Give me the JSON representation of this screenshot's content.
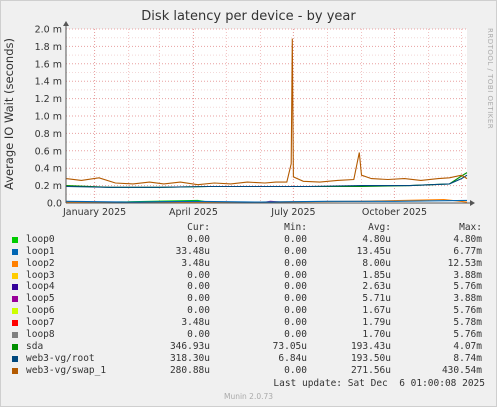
{
  "page": {
    "title": "Disk latency per device - by year",
    "watermark": "RRDTOOL / TOBI OETIKER",
    "last_update": "Last update: Sat Dec  6 01:00:08 2025",
    "footer": "Munin 2.0.73"
  },
  "legend_header": {
    "cur": "Cur:",
    "min": "Min:",
    "avg": "Avg:",
    "max": "Max:"
  },
  "legend": [
    {
      "name": "loop0",
      "color": "#00cc00",
      "cur": "0.00",
      "min": "0.00",
      "avg": "4.80u",
      "max": "4.80m"
    },
    {
      "name": "loop1",
      "color": "#0066b3",
      "cur": "33.48u",
      "min": "0.00",
      "avg": "13.45u",
      "max": "6.77m"
    },
    {
      "name": "loop2",
      "color": "#ff8000",
      "cur": "3.48u",
      "min": "0.00",
      "avg": "8.00u",
      "max": "12.53m"
    },
    {
      "name": "loop3",
      "color": "#ffcc00",
      "cur": "0.00",
      "min": "0.00",
      "avg": "1.85u",
      "max": "3.88m"
    },
    {
      "name": "loop4",
      "color": "#330099",
      "cur": "0.00",
      "min": "0.00",
      "avg": "2.63u",
      "max": "5.76m"
    },
    {
      "name": "loop5",
      "color": "#990099",
      "cur": "0.00",
      "min": "0.00",
      "avg": "5.71u",
      "max": "3.88m"
    },
    {
      "name": "loop6",
      "color": "#ccff00",
      "cur": "0.00",
      "min": "0.00",
      "avg": "1.67u",
      "max": "5.76m"
    },
    {
      "name": "loop7",
      "color": "#ff0000",
      "cur": "3.48u",
      "min": "0.00",
      "avg": "1.79u",
      "max": "5.78m"
    },
    {
      "name": "loop8",
      "color": "#808080",
      "cur": "0.00",
      "min": "0.00",
      "avg": "1.70u",
      "max": "5.76m"
    },
    {
      "name": "sda",
      "color": "#008f00",
      "cur": "346.93u",
      "min": "73.05u",
      "avg": "193.43u",
      "max": "4.07m"
    },
    {
      "name": "web3-vg/root",
      "color": "#00487d",
      "cur": "318.30u",
      "min": "6.84u",
      "avg": "193.50u",
      "max": "8.74m"
    },
    {
      "name": "web3-vg/swap_1",
      "color": "#b35a00",
      "cur": "280.88u",
      "min": "0.00",
      "avg": "271.56u",
      "max": "430.54m"
    }
  ],
  "chart_data": {
    "type": "line",
    "title": "Disk latency per device - by year",
    "ylabel": "Average IO Wait (seconds)",
    "xlabel": "",
    "x_range": [
      "2024-12-06",
      "2025-12-06"
    ],
    "ylim": [
      0,
      0.002
    ],
    "yticks": [
      {
        "value": 0,
        "label": "0.0"
      },
      {
        "value": 0.0002,
        "label": "0.2 m"
      },
      {
        "value": 0.0004,
        "label": "0.4 m"
      },
      {
        "value": 0.0006,
        "label": "0.6 m"
      },
      {
        "value": 0.0008,
        "label": "0.8 m"
      },
      {
        "value": 0.001,
        "label": "1.0 m"
      },
      {
        "value": 0.0012,
        "label": "1.2 m"
      },
      {
        "value": 0.0014,
        "label": "1.4 m"
      },
      {
        "value": 0.0016,
        "label": "1.6 m"
      },
      {
        "value": 0.0018,
        "label": "1.8 m"
      },
      {
        "value": 0.002,
        "label": "2.0 m"
      }
    ],
    "xticks": [
      {
        "date": "2025-01-01",
        "label": "January 2025"
      },
      {
        "date": "2025-04-01",
        "label": "April 2025"
      },
      {
        "date": "2025-07-01",
        "label": "July 2025"
      },
      {
        "date": "2025-10-01",
        "label": "October 2025"
      }
    ],
    "grid": true,
    "series": [
      {
        "name": "web3-vg/swap_1",
        "color": "#b35a00",
        "x": [
          "2024-12-06",
          "2024-12-20",
          "2025-01-05",
          "2025-01-20",
          "2025-02-05",
          "2025-02-20",
          "2025-03-05",
          "2025-03-20",
          "2025-04-05",
          "2025-04-20",
          "2025-05-05",
          "2025-05-20",
          "2025-06-05",
          "2025-06-15",
          "2025-06-25",
          "2025-06-29",
          "2025-06-30",
          "2025-07-01",
          "2025-07-10",
          "2025-07-25",
          "2025-08-10",
          "2025-08-25",
          "2025-08-30",
          "2025-09-01",
          "2025-09-10",
          "2025-09-25",
          "2025-10-10",
          "2025-10-25",
          "2025-11-10",
          "2025-11-20",
          "2025-12-01",
          "2025-12-06"
        ],
        "y": [
          0.00028,
          0.00026,
          0.00029,
          0.00023,
          0.00022,
          0.00024,
          0.00022,
          0.00024,
          0.00021,
          0.00023,
          0.00022,
          0.00024,
          0.00023,
          0.00024,
          0.00024,
          0.00045,
          0.00189,
          0.0003,
          0.00025,
          0.00024,
          0.00026,
          0.00027,
          0.00058,
          0.00032,
          0.00028,
          0.00027,
          0.00028,
          0.00026,
          0.00028,
          0.00029,
          0.00032,
          0.00028
        ]
      },
      {
        "name": "web3-vg/root",
        "color": "#00487d",
        "x": [
          "2024-12-06",
          "2025-01-15",
          "2025-03-01",
          "2025-04-15",
          "2025-06-01",
          "2025-07-15",
          "2025-09-01",
          "2025-10-15",
          "2025-11-20",
          "2025-12-01",
          "2025-12-06"
        ],
        "y": [
          0.00019,
          0.00018,
          0.00018,
          0.00019,
          0.00019,
          0.00019,
          0.0002,
          0.0002,
          0.00022,
          0.00028,
          0.00032
        ]
      },
      {
        "name": "sda",
        "color": "#008f00",
        "x": [
          "2024-12-06",
          "2025-01-15",
          "2025-03-01",
          "2025-04-15",
          "2025-06-01",
          "2025-07-15",
          "2025-09-01",
          "2025-10-15",
          "2025-11-20",
          "2025-12-01",
          "2025-12-06"
        ],
        "y": [
          0.0002,
          0.00018,
          0.00018,
          0.00019,
          0.00019,
          0.00019,
          0.00019,
          0.0002,
          0.00022,
          0.00031,
          0.00035
        ]
      },
      {
        "name": "loop1",
        "color": "#0066b3",
        "x": [
          "2024-12-06",
          "2025-02-01",
          "2025-04-01",
          "2025-06-01",
          "2025-08-01",
          "2025-10-01",
          "2025-12-06"
        ],
        "y": [
          2e-05,
          1e-05,
          2e-05,
          1e-05,
          2e-05,
          2e-05,
          3e-05
        ]
      },
      {
        "name": "loop2",
        "color": "#ff8000",
        "x": [
          "2024-12-06",
          "2025-03-01",
          "2025-06-01",
          "2025-09-01",
          "2025-11-15",
          "2025-12-06"
        ],
        "y": [
          1e-05,
          1e-05,
          1e-05,
          2e-05,
          4e-05,
          1e-05
        ]
      },
      {
        "name": "loop0",
        "color": "#00cc00",
        "x": [
          "2024-12-06",
          "2025-04-05",
          "2025-04-20",
          "2025-06-01",
          "2025-12-06"
        ],
        "y": [
          0.0,
          3e-05,
          0.0,
          0.0,
          0.0
        ]
      },
      {
        "name": "loop5",
        "color": "#990099",
        "x": [
          "2024-12-06",
          "2025-06-01",
          "2025-06-10",
          "2025-07-01",
          "2025-12-06"
        ],
        "y": [
          0.0,
          0.0,
          2e-05,
          0.0,
          0.0
        ]
      }
    ]
  }
}
